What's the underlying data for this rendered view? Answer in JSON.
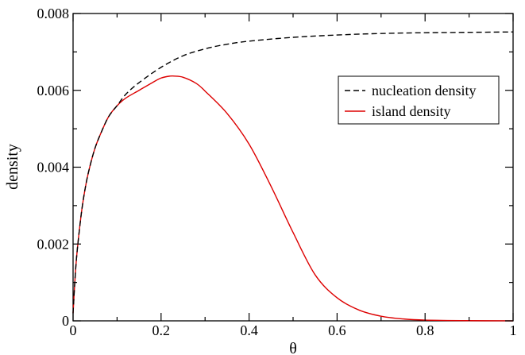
{
  "chart_data": {
    "type": "line",
    "title": "",
    "xlabel": "θ",
    "ylabel": "density",
    "xlim": [
      0,
      1
    ],
    "ylim": [
      0,
      0.008
    ],
    "x_ticks": [
      0,
      0.2,
      0.4,
      0.6,
      0.8,
      1
    ],
    "x_tick_labels": [
      "0",
      "0.2",
      "0.4",
      "0.6",
      "0.8",
      "1"
    ],
    "y_ticks": [
      0,
      0.002,
      0.004,
      0.006,
      0.008
    ],
    "y_tick_labels": [
      "0",
      "0.002",
      "0.004",
      "0.006",
      "0.008"
    ],
    "grid": false,
    "legend_position": "top-right",
    "series": [
      {
        "name": "nucleation density",
        "color": "#000000",
        "dash": "dashed",
        "x": [
          0,
          0.005,
          0.01,
          0.02,
          0.03,
          0.04,
          0.05,
          0.06,
          0.08,
          0.1,
          0.12,
          0.15,
          0.2,
          0.25,
          0.3,
          0.35,
          0.4,
          0.5,
          0.6,
          0.7,
          0.8,
          0.9,
          1.0
        ],
        "y": [
          0.0002,
          0.0012,
          0.0019,
          0.0029,
          0.0036,
          0.0041,
          0.0045,
          0.0048,
          0.0053,
          0.0056,
          0.0059,
          0.0062,
          0.0066,
          0.0069,
          0.00708,
          0.0072,
          0.00728,
          0.00738,
          0.00744,
          0.00748,
          0.0075,
          0.00751,
          0.00752
        ]
      },
      {
        "name": "island density",
        "color": "#dd0000",
        "dash": "solid",
        "x": [
          0,
          0.005,
          0.01,
          0.02,
          0.03,
          0.04,
          0.05,
          0.06,
          0.08,
          0.1,
          0.12,
          0.15,
          0.18,
          0.2,
          0.22,
          0.23,
          0.25,
          0.28,
          0.3,
          0.35,
          0.4,
          0.45,
          0.5,
          0.55,
          0.6,
          0.65,
          0.7,
          0.75,
          0.8,
          0.9,
          1.0
        ],
        "y": [
          0.0002,
          0.0012,
          0.0019,
          0.0029,
          0.0036,
          0.0041,
          0.0045,
          0.0048,
          0.0053,
          0.0056,
          0.0058,
          0.006,
          0.0062,
          0.00632,
          0.00637,
          0.00637,
          0.00634,
          0.00618,
          0.00598,
          0.0054,
          0.0046,
          0.0035,
          0.0023,
          0.0012,
          0.0006,
          0.00028,
          0.00012,
          5e-05,
          2e-05,
          5e-06,
          0.0
        ]
      }
    ]
  }
}
